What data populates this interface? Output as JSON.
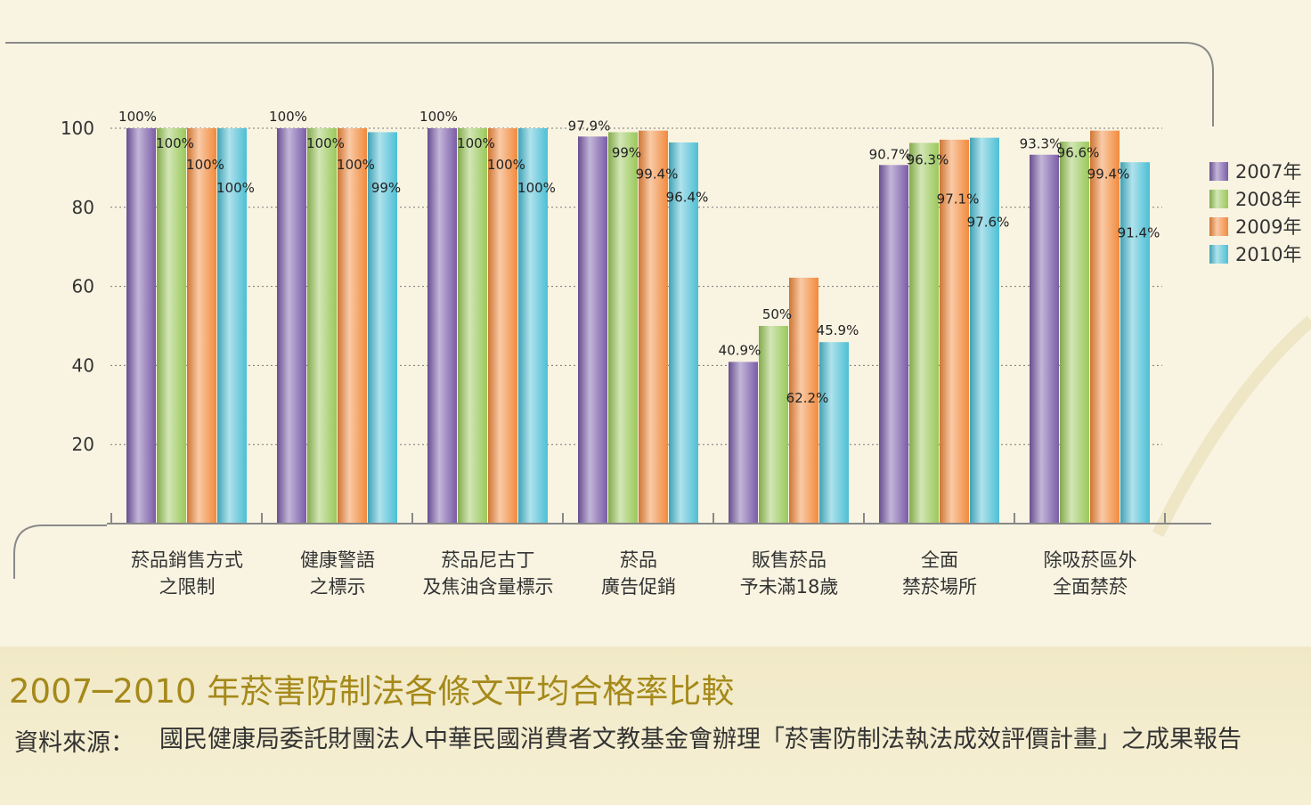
{
  "caption": {
    "title": "2007─2010 年菸害防制法各條文平均合格率比較",
    "source_label": "資料來源：",
    "source_text": "國民健康局委託財團法人中華民國消費者文教基金會辦理「菸害防制法執法成效評價計畫」之成果報告"
  },
  "chart_data": {
    "type": "bar",
    "categories": [
      [
        "菸品銷售方式",
        "之限制"
      ],
      [
        "健康警語",
        "之標示"
      ],
      [
        "菸品尼古丁",
        "及焦油含量標示"
      ],
      [
        "菸品",
        "廣告促銷"
      ],
      [
        "販售菸品",
        "予未滿18歲"
      ],
      [
        "全面",
        "禁菸場所"
      ],
      [
        "除吸菸區外",
        "全面禁菸"
      ]
    ],
    "series": [
      {
        "name": "2007年",
        "color": "#7a5ca8",
        "values": [
          100,
          100,
          100,
          97.9,
          40.9,
          90.7,
          93.3
        ],
        "labels": [
          "100%",
          "100%",
          "100%",
          "97.9%",
          "40.9%",
          "90.7%",
          "93.3%"
        ]
      },
      {
        "name": "2008年",
        "color": "#9ac85a",
        "values": [
          100,
          100,
          100,
          99,
          50,
          96.3,
          96.6
        ],
        "labels": [
          "100%",
          "100%",
          "100%",
          "99%",
          "50%",
          "96.3%",
          "96.6%"
        ]
      },
      {
        "name": "2009年",
        "color": "#f28a3c",
        "values": [
          100,
          100,
          100,
          99.4,
          62.2,
          97.1,
          99.4
        ],
        "labels": [
          "100%",
          "100%",
          "100%",
          "99.4%",
          "62.2%",
          "97.1%",
          "99.4%"
        ]
      },
      {
        "name": "2010年",
        "color": "#4dbfd4",
        "values": [
          100,
          99,
          100,
          96.4,
          45.9,
          97.6,
          91.4
        ],
        "labels": [
          "100%",
          "99%",
          "100%",
          "96.4%",
          "45.9%",
          "97.6%",
          "91.4%"
        ]
      }
    ],
    "yticks": [
      20,
      40,
      60,
      80,
      100
    ],
    "ylim": [
      0,
      100
    ],
    "grid": "dashed horizontal",
    "legend": "right"
  }
}
